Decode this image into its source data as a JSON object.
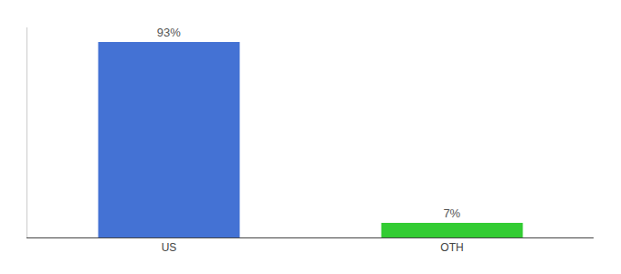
{
  "chart_data": {
    "type": "bar",
    "categories": [
      "US",
      "OTH"
    ],
    "values": [
      93,
      7
    ],
    "value_labels": [
      "93%",
      "7%"
    ],
    "colors": [
      "#4472d4",
      "#33cc33"
    ],
    "ylim": [
      0,
      100
    ],
    "data_labels": true,
    "tick_labels": "x",
    "grid": false
  }
}
